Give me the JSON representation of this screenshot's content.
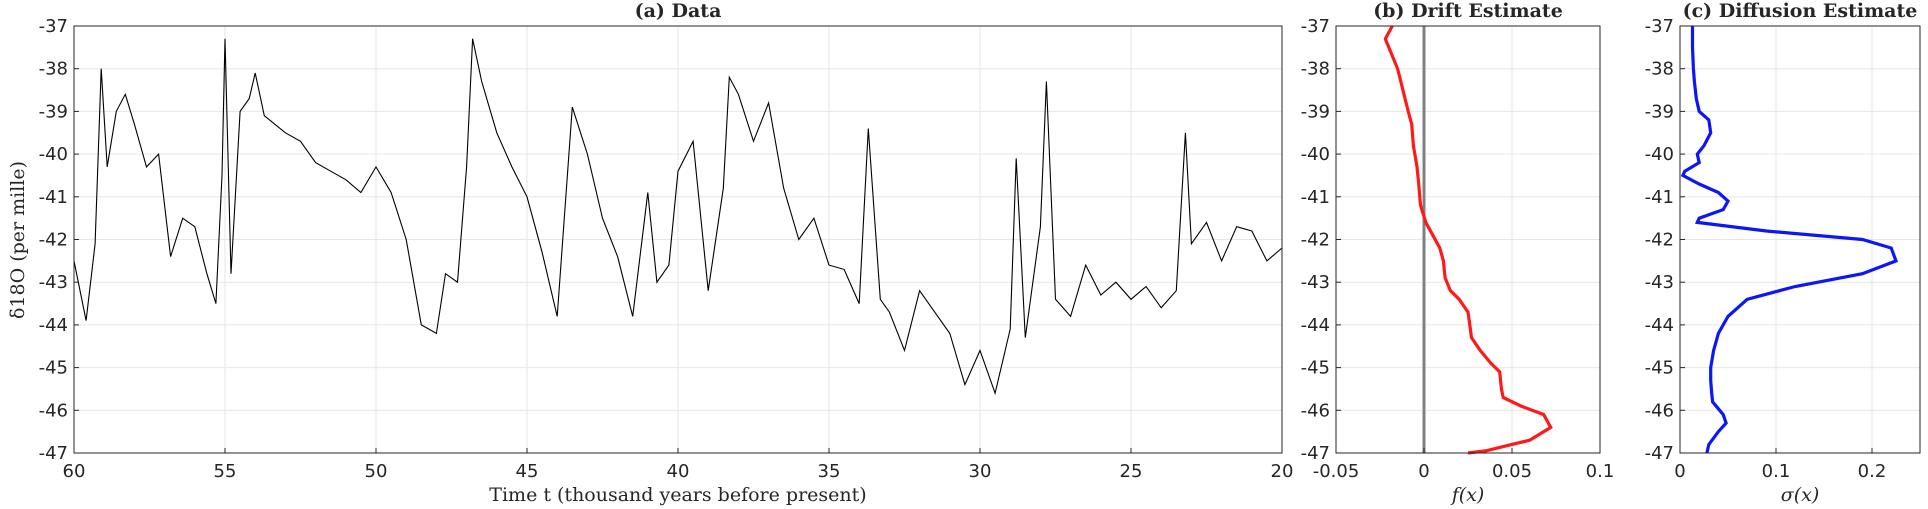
{
  "chart_data": [
    {
      "type": "line",
      "title": "(a) Data",
      "xlabel": "Time t (thousand years before present)",
      "ylabel": "δ18O (per mille)",
      "xlim": [
        60,
        20
      ],
      "ylim": [
        -47,
        -37
      ],
      "x_reversed": true,
      "grid": true,
      "xticks": [
        "60",
        "55",
        "50",
        "45",
        "40",
        "35",
        "30",
        "25",
        "20"
      ],
      "yticks": [
        "-37",
        "-38",
        "-39",
        "-40",
        "-41",
        "-42",
        "-43",
        "-44",
        "-45",
        "-46",
        "-47"
      ],
      "series": [
        {
          "color": "#000000",
          "x": [
            60,
            59.6,
            59.3,
            59.1,
            58.9,
            58.6,
            58.3,
            58.0,
            57.6,
            57.2,
            56.8,
            56.4,
            56.0,
            55.6,
            55.3,
            55.1,
            55.0,
            54.8,
            54.5,
            54.2,
            54.0,
            53.7,
            53.0,
            52.5,
            52.0,
            51.5,
            51.0,
            50.5,
            50.0,
            49.5,
            49.0,
            48.5,
            48.0,
            47.7,
            47.3,
            47.0,
            46.8,
            46.5,
            46.0,
            45.5,
            45.0,
            44.5,
            44.0,
            43.5,
            43.0,
            42.5,
            42.0,
            41.5,
            41.0,
            40.7,
            40.3,
            40.0,
            39.5,
            39.0,
            38.5,
            38.3,
            38.0,
            37.5,
            37.0,
            36.5,
            36.0,
            35.5,
            35.0,
            34.5,
            34.0,
            33.7,
            33.3,
            33.0,
            32.5,
            32.0,
            31.5,
            31.0,
            30.5,
            30.0,
            29.5,
            29.0,
            28.8,
            28.5,
            28.0,
            27.8,
            27.5,
            27.0,
            26.5,
            26.0,
            25.5,
            25.0,
            24.5,
            24.0,
            23.5,
            23.2,
            23.0,
            22.5,
            22.0,
            21.5,
            21.0,
            20.5,
            20.0
          ],
          "values": [
            -42.5,
            -43.9,
            -42.1,
            -38.0,
            -40.3,
            -39.0,
            -38.6,
            -39.3,
            -40.3,
            -40.0,
            -42.4,
            -41.5,
            -41.7,
            -42.8,
            -43.5,
            -40.5,
            -37.3,
            -42.8,
            -39.0,
            -38.7,
            -38.1,
            -39.1,
            -39.5,
            -39.7,
            -40.2,
            -40.4,
            -40.6,
            -40.9,
            -40.3,
            -40.9,
            -42.0,
            -44.0,
            -44.2,
            -42.8,
            -43.0,
            -40.3,
            -37.3,
            -38.3,
            -39.5,
            -40.3,
            -41.0,
            -42.3,
            -43.8,
            -38.9,
            -40.0,
            -41.5,
            -42.4,
            -43.8,
            -40.9,
            -43.0,
            -42.6,
            -40.4,
            -39.7,
            -43.2,
            -40.8,
            -38.2,
            -38.6,
            -39.7,
            -38.8,
            -40.8,
            -42.0,
            -41.5,
            -42.6,
            -42.7,
            -43.5,
            -39.4,
            -43.4,
            -43.7,
            -44.6,
            -43.2,
            -43.7,
            -44.2,
            -45.4,
            -44.6,
            -45.6,
            -44.1,
            -40.1,
            -44.3,
            -41.7,
            -38.3,
            -43.4,
            -43.8,
            -42.6,
            -43.3,
            -43.0,
            -43.4,
            -43.1,
            -43.6,
            -43.2,
            -39.5,
            -42.1,
            -41.6,
            -42.5,
            -41.7,
            -41.8,
            -42.5,
            -42.2
          ]
        }
      ]
    },
    {
      "type": "line",
      "title": "(b) Drift Estimate",
      "xlabel": "f(x)",
      "ylabel": "",
      "xlim": [
        -0.05,
        0.1
      ],
      "ylim": [
        -47,
        -37
      ],
      "grid": true,
      "xticks": [
        "-0.05",
        "0",
        "0.05",
        "0.1"
      ],
      "yticks": [
        "-37",
        "-38",
        "-39",
        "-40",
        "-41",
        "-42",
        "-43",
        "-44",
        "-45",
        "-46",
        "-47"
      ],
      "vline_x": 0,
      "series": [
        {
          "color": "#ff1a1a",
          "x": [
            -0.018,
            -0.022,
            -0.018,
            -0.015,
            -0.012,
            -0.009,
            -0.007,
            -0.006,
            -0.004,
            -0.003,
            -0.002,
            0.001,
            0.005,
            0.009,
            0.011,
            0.012,
            0.015,
            0.02,
            0.025,
            0.026,
            0.027,
            0.032,
            0.038,
            0.043,
            0.044,
            0.045,
            0.055,
            0.068,
            0.072,
            0.06,
            0.045,
            0.035,
            0.025
          ],
          "values": [
            -37.0,
            -37.3,
            -37.7,
            -38.0,
            -38.5,
            -39.0,
            -39.3,
            -39.8,
            -40.3,
            -40.7,
            -41.2,
            -41.6,
            -41.9,
            -42.2,
            -42.5,
            -42.9,
            -43.2,
            -43.4,
            -43.7,
            -44.0,
            -44.3,
            -44.6,
            -44.9,
            -45.1,
            -45.5,
            -45.7,
            -45.9,
            -46.1,
            -46.4,
            -46.7,
            -46.85,
            -46.95,
            -47.0
          ]
        }
      ]
    },
    {
      "type": "line",
      "title": "(c) Diffusion Estimate",
      "xlabel": "σ(x)",
      "ylabel": "",
      "xlim": [
        0,
        0.25
      ],
      "ylim": [
        -47,
        -37
      ],
      "grid": true,
      "xticks": [
        "0",
        "0.1",
        "0.2"
      ],
      "yticks": [
        "-37",
        "-38",
        "-39",
        "-40",
        "-41",
        "-42",
        "-43",
        "-44",
        "-45",
        "-46",
        "-47"
      ],
      "series": [
        {
          "color": "#0d16f5",
          "x": [
            0.013,
            0.013,
            0.014,
            0.015,
            0.017,
            0.02,
            0.03,
            0.032,
            0.025,
            0.018,
            0.02,
            0.005,
            0.003,
            0.02,
            0.04,
            0.05,
            0.045,
            0.02,
            0.018,
            0.09,
            0.19,
            0.22,
            0.225,
            0.19,
            0.12,
            0.07,
            0.05,
            0.04,
            0.035,
            0.032,
            0.032,
            0.033,
            0.034,
            0.045,
            0.048,
            0.04,
            0.03,
            0.028
          ],
          "values": [
            -37.0,
            -37.5,
            -38.0,
            -38.3,
            -38.7,
            -39.0,
            -39.2,
            -39.5,
            -39.8,
            -40.0,
            -40.2,
            -40.4,
            -40.5,
            -40.7,
            -40.9,
            -41.1,
            -41.3,
            -41.5,
            -41.6,
            -41.8,
            -42.0,
            -42.2,
            -42.5,
            -42.8,
            -43.1,
            -43.4,
            -43.8,
            -44.2,
            -44.6,
            -45.0,
            -45.3,
            -45.6,
            -45.8,
            -46.1,
            -46.3,
            -46.5,
            -46.8,
            -47.0
          ]
        }
      ]
    }
  ]
}
